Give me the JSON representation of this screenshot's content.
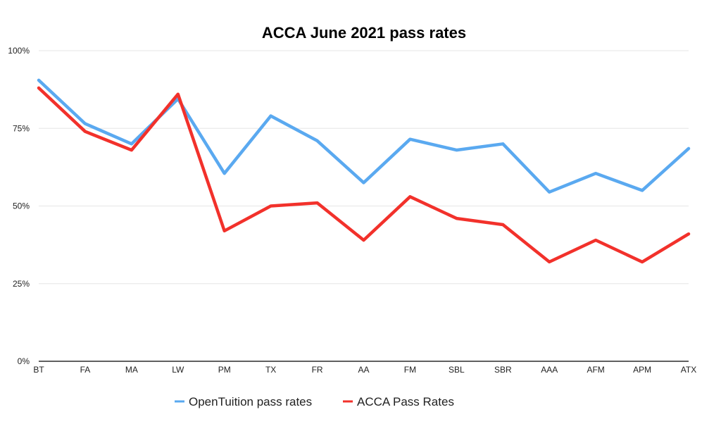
{
  "chart_data": {
    "type": "line",
    "title": "ACCA June 2021 pass rates",
    "xlabel": "",
    "ylabel": "",
    "categories": [
      "BT",
      "FA",
      "MA",
      "LW",
      "PM",
      "TX",
      "FR",
      "AA",
      "FM",
      "SBL",
      "SBR",
      "AAA",
      "AFM",
      "APM",
      "ATX"
    ],
    "ylim": [
      0,
      100
    ],
    "yticks": [
      0,
      25,
      50,
      75,
      100
    ],
    "ytick_labels": [
      "0%",
      "25%",
      "50%",
      "75%",
      "100%"
    ],
    "grid": true,
    "legend_position": "bottom",
    "series": [
      {
        "name": "OpenTuition pass rates",
        "color": "#5aa9f0",
        "values": [
          90.5,
          76.5,
          70,
          84.5,
          60.5,
          79,
          71,
          57.5,
          71.5,
          68,
          70,
          54.5,
          60.5,
          55,
          68.5
        ]
      },
      {
        "name": "ACCA Pass Rates",
        "color": "#f2312b",
        "values": [
          88,
          74,
          68,
          86,
          42,
          50,
          51,
          39,
          53,
          46,
          44,
          32,
          39,
          32,
          41
        ]
      }
    ]
  }
}
